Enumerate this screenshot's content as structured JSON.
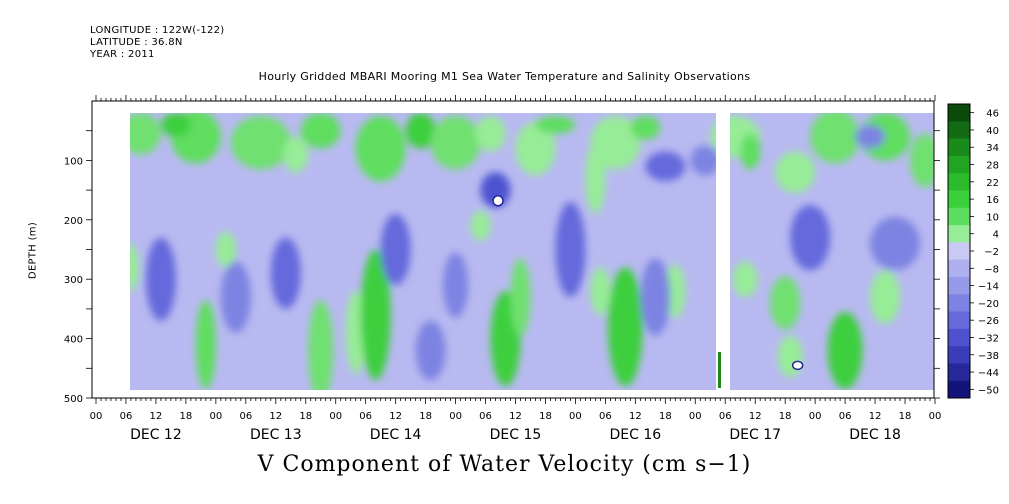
{
  "header": {
    "longitude": "LONGITUDE : 122W(-122)",
    "latitude": "LATITUDE : 36.8N",
    "year": "YEAR : 2011"
  },
  "chart_data": {
    "type": "heatmap",
    "title": "Hourly Gridded MBARI Mooring M1 Sea Water Temperature and Salinity Observations",
    "ylabel": "DEPTH (m)",
    "variable_label": "V Component of Water Velocity (cm s−1)",
    "ylim": [
      500,
      0
    ],
    "y_ticks": [
      100,
      200,
      300,
      400,
      500
    ],
    "x_hour_ticks": [
      "00",
      "06",
      "12",
      "18",
      "00",
      "06",
      "12",
      "18",
      "00",
      "06",
      "12",
      "18",
      "00",
      "06",
      "12",
      "18",
      "00",
      "06",
      "12",
      "18",
      "00",
      "06",
      "12",
      "18",
      "00",
      "06",
      "12",
      "18",
      "00"
    ],
    "x_day_labels": [
      "DEC 12",
      "DEC 13",
      "DEC 14",
      "DEC 15",
      "DEC 16",
      "DEC 17",
      "DEC 18"
    ],
    "colorbar_levels": [
      "46",
      "40",
      "34",
      "28",
      "22",
      "16",
      "10",
      "4",
      "−2",
      "−8",
      "−14",
      "−20",
      "−26",
      "−32",
      "−38",
      "−44",
      "−50"
    ],
    "colorbar_colors": [
      "#0a4a0a",
      "#136b13",
      "#1a8a1a",
      "#22a322",
      "#2cbb2c",
      "#3ccf3c",
      "#5ede5e",
      "#97ec97",
      "#c9c9f5",
      "#aeb0ef",
      "#959ae9",
      "#7d83e2",
      "#6569dc",
      "#4e52d0",
      "#3a3db8",
      "#26289a",
      "#13147a"
    ],
    "data_extent": {
      "start": "DEC 12 06",
      "end": "DEC 18 23",
      "depth_min": 20,
      "depth_max": 485
    },
    "data_gap": {
      "start": "DEC 16 21",
      "end": "DEC 17 01"
    },
    "data_summary": "Predominantly negative (blue/lavender, about −2 to −26 cm/s) below ~150 m with recurring positive (green, +4 to +28 cm/s) bands, strongest near the surface (20–150 m) and in vertical columns around DEC 13 06, DEC 14 06, DEC 15 09, DEC 16 06 and DEC 18 06."
  }
}
